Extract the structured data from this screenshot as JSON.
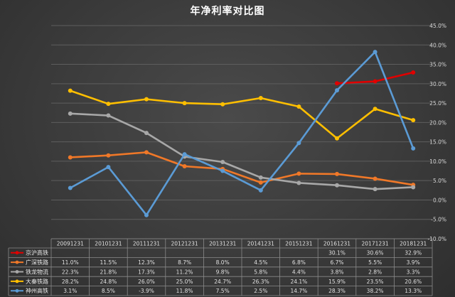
{
  "chart_data": {
    "type": "line",
    "title": "年净利率对比图",
    "categories": [
      "20091231",
      "20101231",
      "20111231",
      "20121231",
      "20131231",
      "20141231",
      "20151231",
      "20161231",
      "20171231",
      "20181231"
    ],
    "yticks": [
      "45.0%",
      "40.0%",
      "35.0%",
      "30.0%",
      "25.0%",
      "20.0%",
      "15.0%",
      "10.0%",
      "5.0%",
      "0.0%",
      "-5.0%",
      "-10.0%"
    ],
    "ylim": [
      -10,
      45
    ],
    "grid": true,
    "legend": "table-below",
    "series": [
      {
        "name": "京沪高铁",
        "color": "#e00000",
        "values": [
          null,
          null,
          null,
          null,
          null,
          null,
          null,
          30.1,
          30.6,
          32.9
        ],
        "labels": [
          "",
          "",
          "",
          "",
          "",
          "",
          "",
          "30.1%",
          "30.6%",
          "32.9%"
        ]
      },
      {
        "name": "广深铁路",
        "color": "#f07828",
        "values": [
          11.0,
          11.5,
          12.3,
          8.7,
          8.0,
          4.5,
          6.8,
          6.7,
          5.5,
          3.9
        ],
        "labels": [
          "11.0%",
          "11.5%",
          "12.3%",
          "8.7%",
          "8.0%",
          "4.5%",
          "6.8%",
          "6.7%",
          "5.5%",
          "3.9%"
        ]
      },
      {
        "name": "铁龙物流",
        "color": "#a8a8a8",
        "values": [
          22.3,
          21.8,
          17.3,
          11.2,
          9.8,
          5.8,
          4.4,
          3.8,
          2.8,
          3.3
        ],
        "labels": [
          "22.3%",
          "21.8%",
          "17.3%",
          "11.2%",
          "9.8%",
          "5.8%",
          "4.4%",
          "3.8%",
          "2.8%",
          "3.3%"
        ]
      },
      {
        "name": "大秦铁路",
        "color": "#ffbf00",
        "values": [
          28.2,
          24.8,
          26.0,
          25.0,
          24.7,
          26.3,
          24.1,
          15.9,
          23.5,
          20.6
        ],
        "labels": [
          "28.2%",
          "24.8%",
          "26.0%",
          "25.0%",
          "24.7%",
          "26.3%",
          "24.1%",
          "15.9%",
          "23.5%",
          "20.6%"
        ]
      },
      {
        "name": "神州高铁",
        "color": "#5b9bd5",
        "values": [
          3.1,
          8.5,
          -3.9,
          11.8,
          7.5,
          2.5,
          14.7,
          28.3,
          38.2,
          13.3
        ],
        "labels": [
          "3.1%",
          "8.5%",
          "-3.9%",
          "11.8%",
          "7.5%",
          "2.5%",
          "14.7%",
          "28.3%",
          "38.2%",
          "13.3%"
        ]
      }
    ]
  }
}
